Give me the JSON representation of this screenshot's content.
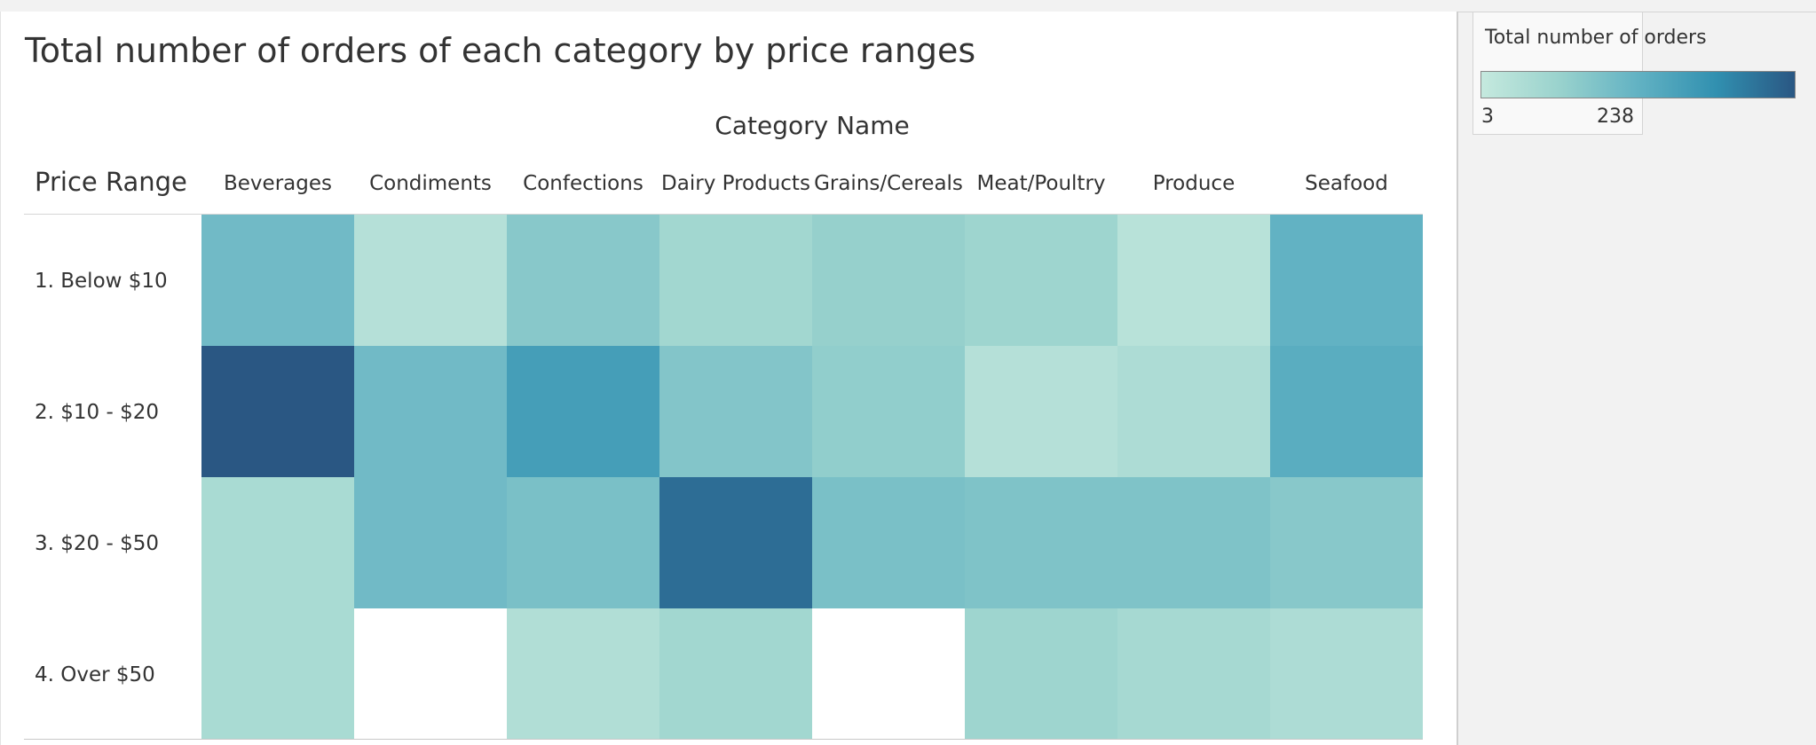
{
  "chart_data": {
    "type": "heatmap",
    "title": "Total number of orders of each category by price ranges",
    "column_header": "Category Name",
    "row_header": "Price Range",
    "categories": [
      "Beverages",
      "Condiments",
      "Confections",
      "Dairy Products",
      "Grains/Cereals",
      "Meat/Poultry",
      "Produce",
      "Seafood"
    ],
    "rows": [
      "1. Below $10",
      "2. $10 - $20",
      "3. $20 - $50",
      "4. Over $50"
    ],
    "values": [
      [
        105,
        25,
        80,
        50,
        65,
        55,
        20,
        120
      ],
      [
        238,
        105,
        155,
        85,
        70,
        25,
        35,
        130
      ],
      [
        40,
        105,
        95,
        215,
        95,
        90,
        90,
        80
      ],
      [
        40,
        null,
        30,
        50,
        null,
        55,
        45,
        35
      ]
    ],
    "legend": {
      "title": "Total number of orders",
      "min_label": "3",
      "max_label": "238",
      "min": 3,
      "max": 238
    },
    "colors": {
      "scale": [
        "#c5e9de",
        "#99d2cd",
        "#62b2c3",
        "#3190b0",
        "#2a5783"
      ],
      "empty": "#ffffff"
    }
  }
}
